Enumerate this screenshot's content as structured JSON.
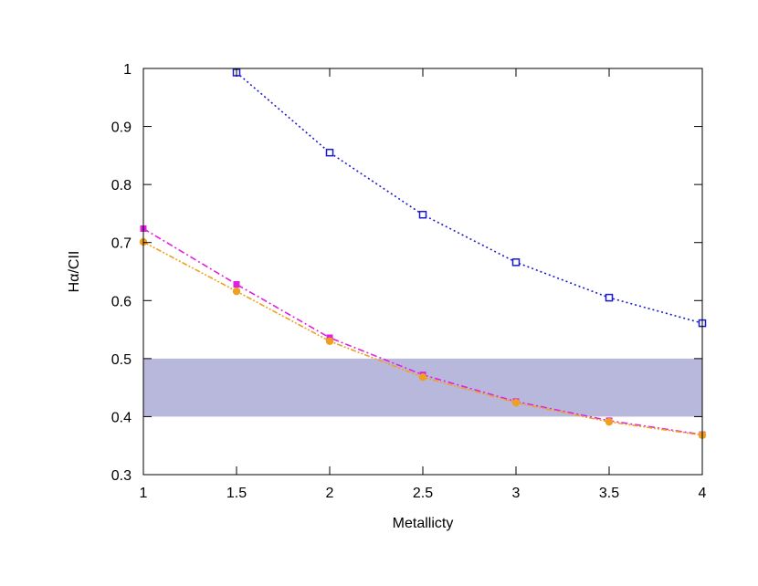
{
  "chart_data": {
    "type": "line",
    "xlabel": "Metallicty",
    "ylabel": "Hα/CII",
    "xlim": [
      1,
      4
    ],
    "ylim": [
      0.3,
      1
    ],
    "x_ticks": [
      1,
      1.5,
      2,
      2.5,
      3,
      3.5,
      4
    ],
    "y_ticks": [
      0.3,
      0.4,
      0.5,
      0.6,
      0.7,
      0.8,
      0.9,
      1
    ],
    "grid": false,
    "band": {
      "y_min": 0.4,
      "y_max": 0.5,
      "color": "#b8b8dd"
    },
    "series": [
      {
        "color": "#1a1acc",
        "marker": "open-square",
        "line": "dotted",
        "x": [
          1.5,
          2,
          2.5,
          3,
          3.5,
          4
        ],
        "values": [
          0.993,
          0.855,
          0.748,
          0.666,
          0.605,
          0.561
        ]
      },
      {
        "color": "#e020e0",
        "marker": "filled-square",
        "line": "dash-dot",
        "x": [
          1,
          1.5,
          2,
          2.5,
          3,
          3.5,
          4
        ],
        "values": [
          0.724,
          0.628,
          0.536,
          0.472,
          0.426,
          0.393,
          0.369
        ]
      },
      {
        "color": "#f0a020",
        "marker": "filled-circle",
        "line": "dash-dot-dot",
        "x": [
          1,
          1.5,
          2,
          2.5,
          3,
          3.5,
          4
        ],
        "values": [
          0.701,
          0.616,
          0.53,
          0.468,
          0.424,
          0.391,
          0.368
        ]
      }
    ]
  }
}
